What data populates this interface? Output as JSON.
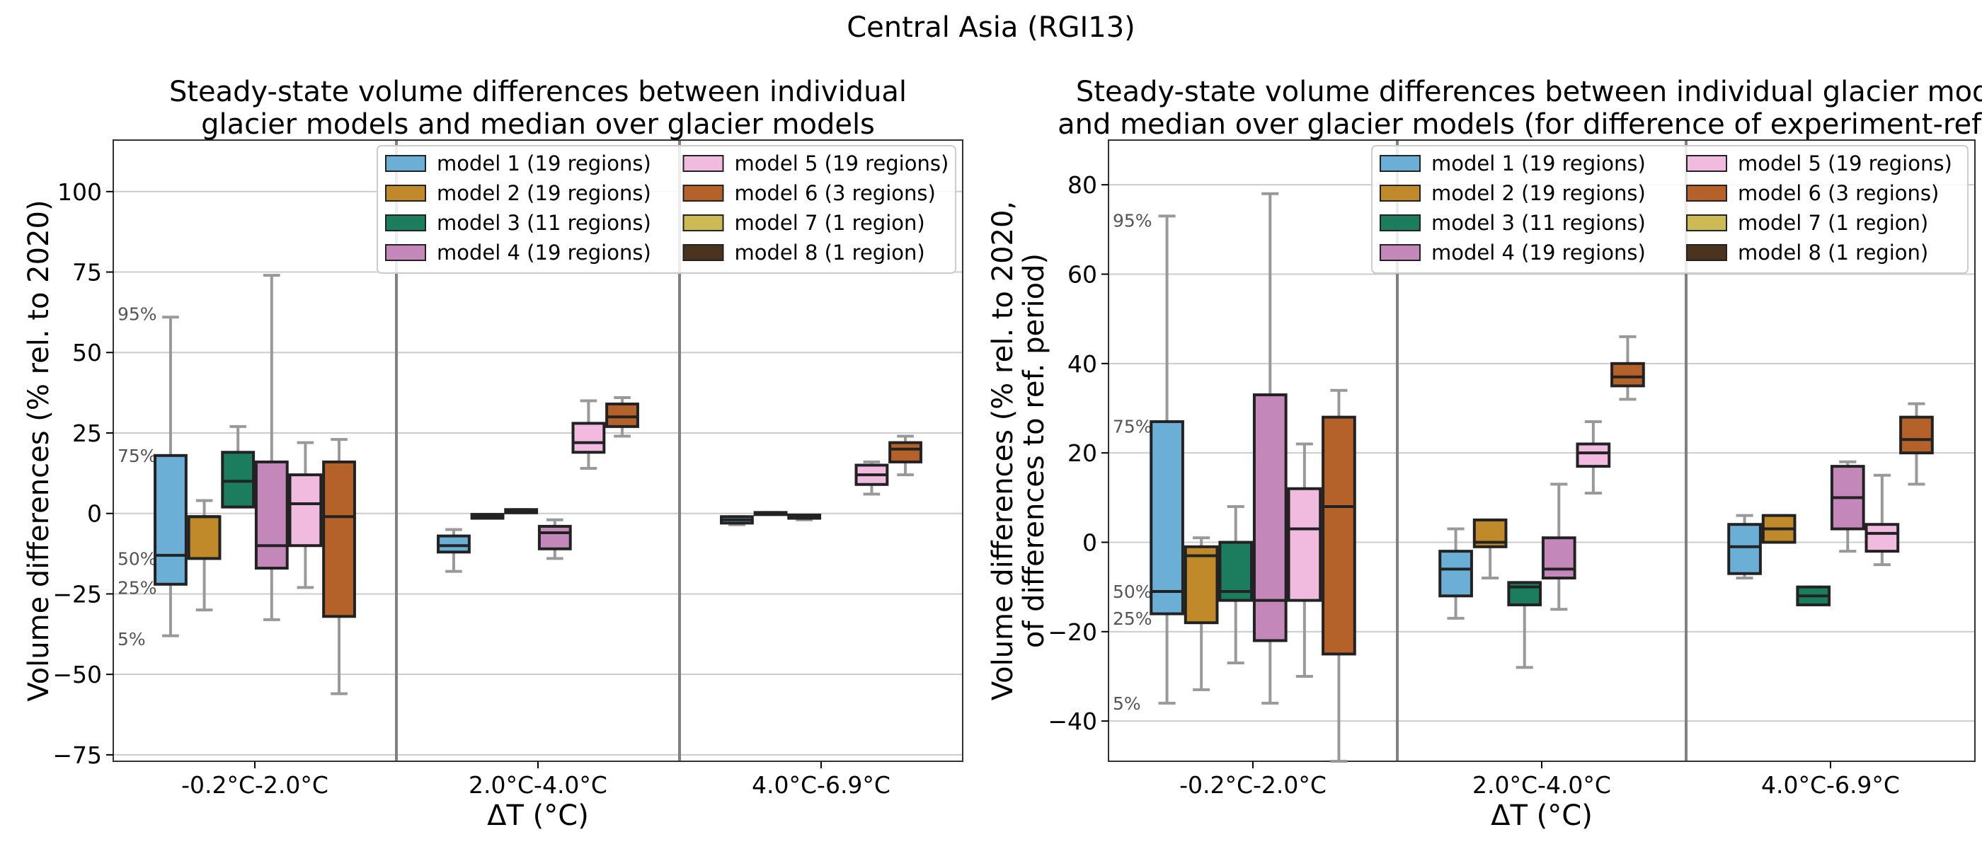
{
  "figure": {
    "suptitle": "Central Asia (RGI13)"
  },
  "legend_entries": [
    {
      "label": "model 1 (19 regions)",
      "color": "#6BAED6"
    },
    {
      "label": "model 2 (19 regions)",
      "color": "#C08A2B"
    },
    {
      "label": "model 3 (11 regions)",
      "color": "#1B7D5E"
    },
    {
      "label": "model 4 (19 regions)",
      "color": "#C487BA"
    },
    {
      "label": "model 5 (19 regions)",
      "color": "#F1BBE0"
    },
    {
      "label": "model 6 (3 regions)",
      "color": "#B5622A"
    },
    {
      "label": "model 7 (1 region)",
      "color": "#CCBB55"
    },
    {
      "label": "model 8 (1 region)",
      "color": "#4A3420"
    }
  ],
  "chart_data": [
    {
      "type": "box",
      "title": "Steady-state volume differences between individual\nglacier models and median over glacier models",
      "xlabel": "ΔT (°C)",
      "ylabel": "Volume differences (% rel. to 2020)",
      "ylim": [
        -77,
        116
      ],
      "yticks": [
        -75,
        -50,
        -25,
        0,
        25,
        50,
        75,
        100
      ],
      "ytick_labels": [
        "−75",
        "−50",
        "−25",
        "0",
        "25",
        "50",
        "75",
        "100"
      ],
      "grid": "horizontal",
      "legend_placement": "upper right",
      "categories": [
        "-0.2°C-2.0°C",
        "2.0°C-4.0°C",
        "4.0°C-6.9°C"
      ],
      "quantile_labels": [
        {
          "text": "95%",
          "y": 62
        },
        {
          "text": "75%",
          "y": 18
        },
        {
          "text": "50%",
          "y": -14
        },
        {
          "text": "25%",
          "y": -23
        },
        {
          "text": "5%",
          "y": -39
        }
      ],
      "boxes": [
        {
          "category": 0,
          "model": 0,
          "whislo": -38,
          "q1": -22,
          "med": -13,
          "q3": 18,
          "whishi": 61
        },
        {
          "category": 0,
          "model": 1,
          "whislo": -30,
          "q1": -14,
          "med": -1,
          "q3": -1,
          "whishi": 4
        },
        {
          "category": 0,
          "model": 2,
          "whislo": 2,
          "q1": 2,
          "med": 10,
          "q3": 19,
          "whishi": 27
        },
        {
          "category": 0,
          "model": 3,
          "whislo": -33,
          "q1": -17,
          "med": -10,
          "q3": 16,
          "whishi": 74
        },
        {
          "category": 0,
          "model": 4,
          "whislo": -23,
          "q1": -10,
          "med": 3,
          "q3": 12,
          "whishi": 22
        },
        {
          "category": 0,
          "model": 5,
          "whislo": -56,
          "q1": -32,
          "med": -1,
          "q3": 16,
          "whishi": 23
        },
        {
          "category": 1,
          "model": 0,
          "whislo": -18,
          "q1": -12,
          "med": -10,
          "q3": -7,
          "whishi": -5
        },
        {
          "category": 1,
          "model": 1,
          "whislo": -1.5,
          "q1": -1.5,
          "med": -0.8,
          "q3": -0.3,
          "whishi": -0.3
        },
        {
          "category": 1,
          "model": 2,
          "whislo": 0.2,
          "q1": 0.2,
          "med": 0.7,
          "q3": 1.2,
          "whishi": 1.2
        },
        {
          "category": 1,
          "model": 3,
          "whislo": -14,
          "q1": -11,
          "med": -6,
          "q3": -4,
          "whishi": -2
        },
        {
          "category": 1,
          "model": 4,
          "whislo": 14,
          "q1": 19,
          "med": 22,
          "q3": 28,
          "whishi": 35
        },
        {
          "category": 1,
          "model": 5,
          "whislo": 24,
          "q1": 27,
          "med": 30,
          "q3": 34,
          "whishi": 36
        },
        {
          "category": 2,
          "model": 0,
          "whislo": -3.5,
          "q1": -3,
          "med": -2,
          "q3": -1,
          "whishi": -1
        },
        {
          "category": 2,
          "model": 1,
          "whislo": -0.3,
          "q1": -0.3,
          "med": 0,
          "q3": 0.3,
          "whishi": 0.3
        },
        {
          "category": 2,
          "model": 2,
          "whislo": -2,
          "q1": -1.5,
          "med": -1,
          "q3": -0.5,
          "whishi": -0.5
        },
        {
          "category": 2,
          "model": 4,
          "whislo": 6,
          "q1": 9,
          "med": 12,
          "q3": 15,
          "whishi": 16
        },
        {
          "category": 2,
          "model": 5,
          "whislo": 12,
          "q1": 16,
          "med": 20,
          "q3": 22,
          "whishi": 24
        }
      ]
    },
    {
      "type": "box",
      "title": "Steady-state volume differences between individual glacier mode\nand median over glacier models (for difference of experiment-ref pe",
      "xlabel": "ΔT (°C)",
      "ylabel": "Volume differences (% rel. to 2020,\nof differences to ref. period)",
      "ylim": [
        -49,
        90
      ],
      "yticks": [
        -40,
        -20,
        0,
        20,
        40,
        60,
        80
      ],
      "ytick_labels": [
        "−40",
        "−20",
        "0",
        "20",
        "40",
        "60",
        "80"
      ],
      "grid": "horizontal",
      "legend_placement": "upper right",
      "categories": [
        "-0.2°C-2.0°C",
        "2.0°C-4.0°C",
        "4.0°C-6.9°C"
      ],
      "quantile_labels": [
        {
          "text": "95%",
          "y": 72
        },
        {
          "text": "75%",
          "y": 26
        },
        {
          "text": "50%",
          "y": -11
        },
        {
          "text": "25%",
          "y": -17
        },
        {
          "text": "5%",
          "y": -36
        }
      ],
      "boxes": [
        {
          "category": 0,
          "model": 0,
          "whislo": -36,
          "q1": -16,
          "med": -11,
          "q3": 27,
          "whishi": 73
        },
        {
          "category": 0,
          "model": 1,
          "whislo": -33,
          "q1": -18,
          "med": -3,
          "q3": -1,
          "whishi": 1
        },
        {
          "category": 0,
          "model": 2,
          "whislo": -27,
          "q1": -13,
          "med": -11,
          "q3": 0,
          "whishi": 8
        },
        {
          "category": 0,
          "model": 3,
          "whislo": -36,
          "q1": -22,
          "med": -13,
          "q3": 33,
          "whishi": 78
        },
        {
          "category": 0,
          "model": 4,
          "whislo": -30,
          "q1": -13,
          "med": 3,
          "q3": 12,
          "whishi": 22
        },
        {
          "category": 0,
          "model": 5,
          "whislo": -49,
          "q1": -25,
          "med": 8,
          "q3": 28,
          "whishi": 34
        },
        {
          "category": 1,
          "model": 0,
          "whislo": -17,
          "q1": -12,
          "med": -6,
          "q3": -2,
          "whishi": 3
        },
        {
          "category": 1,
          "model": 1,
          "whislo": -8,
          "q1": -1,
          "med": 0,
          "q3": 5,
          "whishi": 5
        },
        {
          "category": 1,
          "model": 2,
          "whislo": -28,
          "q1": -14,
          "med": -10,
          "q3": -9,
          "whishi": -9
        },
        {
          "category": 1,
          "model": 3,
          "whislo": -15,
          "q1": -8,
          "med": -6,
          "q3": 1,
          "whishi": 13
        },
        {
          "category": 1,
          "model": 4,
          "whislo": 11,
          "q1": 17,
          "med": 20,
          "q3": 22,
          "whishi": 27
        },
        {
          "category": 1,
          "model": 5,
          "whislo": 32,
          "q1": 35,
          "med": 37,
          "q3": 40,
          "whishi": 46
        },
        {
          "category": 2,
          "model": 0,
          "whislo": -8,
          "q1": -7,
          "med": -1,
          "q3": 4,
          "whishi": 6
        },
        {
          "category": 2,
          "model": 1,
          "whislo": 0,
          "q1": 0,
          "med": 3,
          "q3": 6,
          "whishi": 6
        },
        {
          "category": 2,
          "model": 2,
          "whislo": -14,
          "q1": -14,
          "med": -12,
          "q3": -10,
          "whishi": -10
        },
        {
          "category": 2,
          "model": 3,
          "whislo": -2,
          "q1": 3,
          "med": 10,
          "q3": 17,
          "whishi": 18
        },
        {
          "category": 2,
          "model": 4,
          "whislo": -5,
          "q1": -2,
          "med": 2,
          "q3": 4,
          "whishi": 15
        },
        {
          "category": 2,
          "model": 5,
          "whislo": 13,
          "q1": 20,
          "med": 23,
          "q3": 28,
          "whishi": 31
        }
      ]
    }
  ]
}
